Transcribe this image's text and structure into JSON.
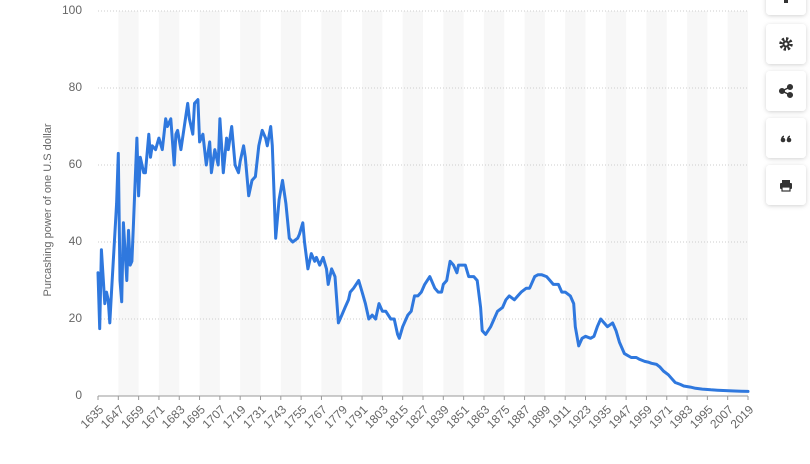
{
  "chart_data": {
    "type": "line",
    "y_label": "Purcashing power of one U.S dollar",
    "xlim": [
      1635,
      2019
    ],
    "ylim": [
      0,
      100
    ],
    "xticks": [
      1635,
      1647,
      1659,
      1671,
      1683,
      1695,
      1707,
      1719,
      1731,
      1743,
      1755,
      1767,
      1779,
      1791,
      1803,
      1815,
      1827,
      1839,
      1851,
      1863,
      1875,
      1887,
      1899,
      1911,
      1923,
      1935,
      1947,
      1959,
      1971,
      1983,
      1995,
      2007,
      2019
    ],
    "yticks": [
      0,
      20,
      40,
      60,
      80,
      100
    ],
    "grid": true,
    "color": "#2f78de",
    "x": [
      1635,
      1636,
      1637,
      1639,
      1640,
      1641,
      1642,
      1643,
      1646,
      1647,
      1648,
      1649,
      1650,
      1652,
      1653,
      1654,
      1655,
      1656,
      1658,
      1659,
      1660,
      1662,
      1663,
      1665,
      1666,
      1667,
      1669,
      1671,
      1673,
      1675,
      1676,
      1678,
      1680,
      1681,
      1682,
      1684,
      1686,
      1688,
      1689,
      1691,
      1692,
      1694,
      1695,
      1697,
      1699,
      1701,
      1702,
      1704,
      1706,
      1707,
      1709,
      1711,
      1712,
      1714,
      1716,
      1718,
      1719,
      1721,
      1722,
      1724,
      1726,
      1728,
      1730,
      1732,
      1734,
      1735,
      1737,
      1738,
      1740,
      1742,
      1744,
      1746,
      1748,
      1750,
      1753,
      1754,
      1756,
      1757,
      1759,
      1761,
      1763,
      1764,
      1766,
      1768,
      1770,
      1771,
      1773,
      1775,
      1777,
      1779,
      1781,
      1783,
      1784,
      1786,
      1789,
      1791,
      1793,
      1795,
      1797,
      1799,
      1801,
      1803,
      1805,
      1808,
      1810,
      1812,
      1813,
      1815,
      1818,
      1820,
      1822,
      1824,
      1826,
      1828,
      1831,
      1832,
      1834,
      1836,
      1838,
      1839,
      1841,
      1843,
      1845,
      1847,
      1848,
      1850,
      1852,
      1854,
      1855,
      1857,
      1859,
      1861,
      1862,
      1864,
      1867,
      1869,
      1871,
      1874,
      1876,
      1878,
      1881,
      1883,
      1885,
      1888,
      1890,
      1893,
      1895,
      1897,
      1900,
      1902,
      1904,
      1907,
      1909,
      1911,
      1914,
      1916,
      1917,
      1919,
      1921,
      1923,
      1926,
      1928,
      1930,
      1932,
      1934,
      1936,
      1939,
      1941,
      1943,
      1946,
      1948,
      1950,
      1953,
      1955,
      1958,
      1960,
      1962,
      1965,
      1967,
      1969,
      1972,
      1974,
      1976,
      1979,
      1981,
      1985,
      1988,
      1992,
      1997,
      2001,
      2006,
      2011,
      2015,
      2019
    ],
    "values": [
      32,
      17.5,
      38,
      24,
      27,
      25,
      19,
      27,
      50,
      63,
      30,
      24.5,
      45,
      30,
      43,
      34,
      35,
      45,
      67,
      52,
      62,
      58,
      58,
      68,
      62,
      65,
      64,
      67,
      64,
      72,
      70,
      72,
      60,
      68,
      69,
      64,
      70,
      76,
      72,
      68,
      76,
      77,
      66,
      68,
      60,
      66,
      58,
      64,
      60,
      72,
      58,
      67,
      64,
      70,
      60,
      58,
      61,
      65,
      62,
      52,
      56,
      57,
      65,
      69,
      67,
      65,
      70,
      65,
      41,
      51,
      56,
      50,
      41,
      40,
      41,
      42,
      45,
      40,
      33,
      37,
      35,
      36,
      34,
      36,
      33,
      29,
      33,
      31,
      19,
      21,
      23,
      25,
      27,
      28,
      30,
      27,
      24,
      20,
      21,
      20,
      24,
      22,
      22,
      20,
      20,
      16,
      15,
      18,
      21,
      22,
      26,
      26,
      27,
      29,
      31,
      30,
      28,
      27,
      27,
      29,
      30,
      35,
      34,
      32,
      34,
      34,
      34,
      31,
      31,
      31,
      30,
      23,
      17,
      16,
      18,
      20,
      22,
      23,
      25,
      26,
      25,
      26,
      27,
      28,
      28,
      31,
      31.5,
      31.5,
      31,
      30,
      29,
      29,
      27,
      27,
      26,
      24,
      18,
      13,
      15,
      15.5,
      15,
      15.5,
      18,
      20,
      19,
      18,
      19,
      17,
      14,
      11,
      10.5,
      10,
      10,
      9.5,
      9,
      8.8,
      8.5,
      8.2,
      7.5,
      6.5,
      5.5,
      4.5,
      3.5,
      3,
      2.6,
      2.3,
      2,
      1.8,
      1.6,
      1.5,
      1.4,
      1.3,
      1.25,
      1.2
    ]
  }
}
